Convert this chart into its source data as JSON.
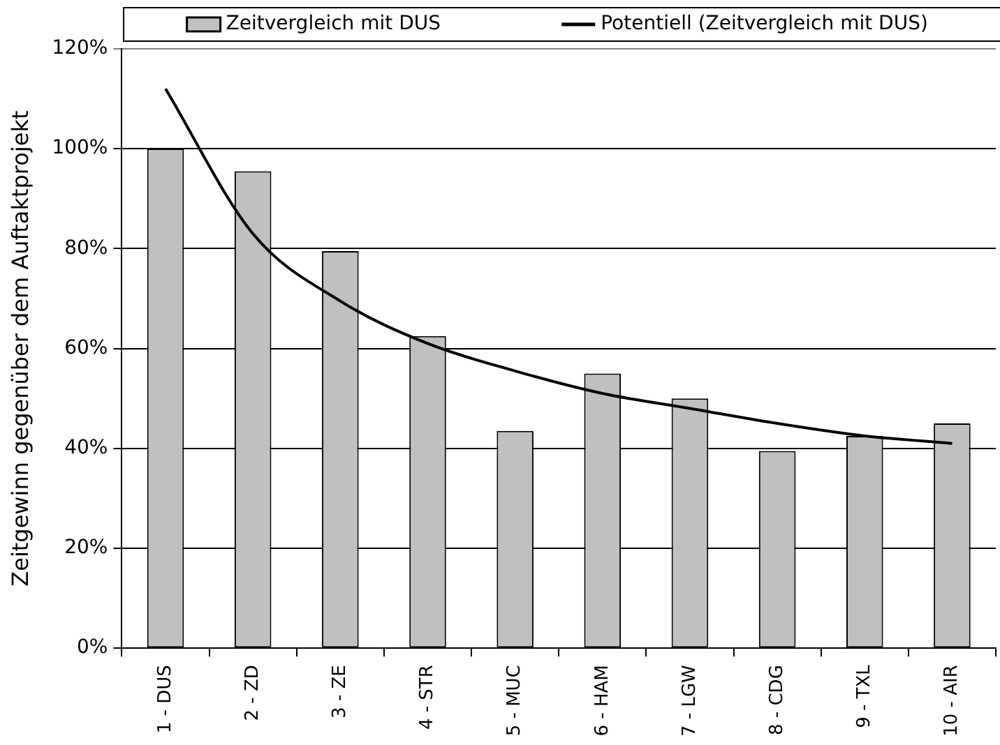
{
  "chart_data": {
    "type": "bar",
    "ylabel": "Zeitgewinn gegenüber dem Auftaktprojekt",
    "categories": [
      "1 - DUS",
      "2 - ZD",
      "3 - ZE",
      "4 - STR",
      "5 - MUC",
      "6 - HAM",
      "7 - LGW",
      "8 - CDG",
      "9 - TXL",
      "10 - AIR"
    ],
    "series": [
      {
        "name": "Zeitvergleich mit DUS",
        "color": "#c0c0c0",
        "values": [
          100,
          95.5,
          79.5,
          62.5,
          43.5,
          55,
          50,
          39.5,
          42.5,
          45
        ]
      },
      {
        "name": "Potentiell (Zeitvergleich mit DUS)",
        "type": "line",
        "color": "#000000",
        "values": [
          112,
          83,
          69.5,
          61,
          55.5,
          51,
          48,
          45,
          42.5,
          41
        ]
      }
    ],
    "ylim": [
      0,
      120
    ],
    "yticks": [
      {
        "value": 0,
        "label": "0%"
      },
      {
        "value": 20,
        "label": "20%"
      },
      {
        "value": 40,
        "label": "40%"
      },
      {
        "value": 60,
        "label": "60%"
      },
      {
        "value": 80,
        "label": "80%"
      },
      {
        "value": 100,
        "label": "100%"
      },
      {
        "value": 120,
        "label": "120%"
      }
    ],
    "grid": "y",
    "legend": "top",
    "marker": "none",
    "line_style": "solid"
  }
}
